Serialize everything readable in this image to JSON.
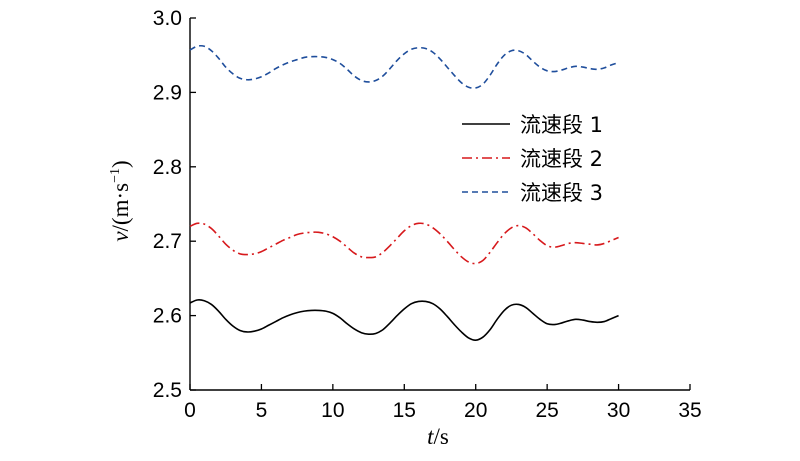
{
  "chart_data": {
    "type": "line",
    "xlabel": {
      "var": "t",
      "unit": "/s"
    },
    "ylabel": {
      "var": "v",
      "unit": "/(m·s",
      "exp": "−1",
      "close": ")"
    },
    "xlim": [
      0,
      35
    ],
    "ylim": [
      2.5,
      3.0
    ],
    "xticks": [
      "0",
      "5",
      "10",
      "15",
      "20",
      "25",
      "30",
      "35"
    ],
    "yticks": [
      "2.5",
      "2.6",
      "2.7",
      "2.8",
      "2.9",
      "3.0"
    ],
    "grid": false,
    "legend_position": "right",
    "series": [
      {
        "name": "流速段 1",
        "color": "#000000",
        "dash": "solid",
        "x": [
          0,
          0.5,
          1,
          1.5,
          2,
          2.5,
          3,
          3.5,
          4,
          4.5,
          5,
          5.5,
          6,
          6.5,
          7,
          7.5,
          8,
          8.5,
          9,
          9.5,
          10,
          10.5,
          11,
          11.5,
          12,
          12.5,
          13,
          13.5,
          14,
          14.5,
          15,
          15.5,
          16,
          16.5,
          17,
          17.5,
          18,
          18.5,
          19,
          19.5,
          20,
          20.5,
          21,
          21.5,
          22,
          22.5,
          23,
          23.5,
          24,
          24.5,
          25,
          25.5,
          26,
          26.5,
          27,
          27.5,
          28,
          28.5,
          29,
          29.5,
          30
        ],
        "values": [
          2.617,
          2.621,
          2.62,
          2.615,
          2.606,
          2.595,
          2.586,
          2.58,
          2.578,
          2.579,
          2.582,
          2.587,
          2.592,
          2.597,
          2.601,
          2.604,
          2.606,
          2.607,
          2.607,
          2.606,
          2.603,
          2.597,
          2.589,
          2.582,
          2.577,
          2.575,
          2.576,
          2.581,
          2.59,
          2.6,
          2.609,
          2.616,
          2.619,
          2.619,
          2.616,
          2.609,
          2.599,
          2.588,
          2.578,
          2.57,
          2.567,
          2.571,
          2.581,
          2.595,
          2.607,
          2.614,
          2.615,
          2.611,
          2.603,
          2.595,
          2.589,
          2.588,
          2.59,
          2.593,
          2.595,
          2.594,
          2.592,
          2.591,
          2.592,
          2.596,
          2.6
        ]
      },
      {
        "name": "流速段 2",
        "color": "#d7191c",
        "dash": "dashdot",
        "x": [
          0,
          0.5,
          1,
          1.5,
          2,
          2.5,
          3,
          3.5,
          4,
          4.5,
          5,
          5.5,
          6,
          6.5,
          7,
          7.5,
          8,
          8.5,
          9,
          9.5,
          10,
          10.5,
          11,
          11.5,
          12,
          12.5,
          13,
          13.5,
          14,
          14.5,
          15,
          15.5,
          16,
          16.5,
          17,
          17.5,
          18,
          18.5,
          19,
          19.5,
          20,
          20.5,
          21,
          21.5,
          22,
          22.5,
          23,
          23.5,
          24,
          24.5,
          25,
          25.5,
          26,
          26.5,
          27,
          27.5,
          28,
          28.5,
          29,
          29.5,
          30
        ],
        "values": [
          2.72,
          2.724,
          2.723,
          2.717,
          2.707,
          2.696,
          2.688,
          2.683,
          2.682,
          2.683,
          2.686,
          2.691,
          2.696,
          2.701,
          2.705,
          2.709,
          2.711,
          2.712,
          2.712,
          2.71,
          2.706,
          2.7,
          2.692,
          2.684,
          2.679,
          2.678,
          2.679,
          2.685,
          2.694,
          2.704,
          2.714,
          2.721,
          2.724,
          2.723,
          2.718,
          2.71,
          2.7,
          2.689,
          2.679,
          2.672,
          2.67,
          2.674,
          2.685,
          2.698,
          2.71,
          2.718,
          2.721,
          2.718,
          2.71,
          2.701,
          2.694,
          2.692,
          2.694,
          2.697,
          2.698,
          2.697,
          2.696,
          2.695,
          2.697,
          2.701,
          2.705
        ]
      },
      {
        "name": "流速段 3",
        "color": "#1f4e9c",
        "dash": "dash",
        "x": [
          0,
          0.5,
          1,
          1.5,
          2,
          2.5,
          3,
          3.5,
          4,
          4.5,
          5,
          5.5,
          6,
          6.5,
          7,
          7.5,
          8,
          8.5,
          9,
          9.5,
          10,
          10.5,
          11,
          11.5,
          12,
          12.5,
          13,
          13.5,
          14,
          14.5,
          15,
          15.5,
          16,
          16.5,
          17,
          17.5,
          18,
          18.5,
          19,
          19.5,
          20,
          20.5,
          21,
          21.5,
          22,
          22.5,
          23,
          23.5,
          24,
          24.5,
          25,
          25.5,
          26,
          26.5,
          27,
          27.5,
          28,
          28.5,
          29,
          29.5,
          30
        ],
        "values": [
          2.957,
          2.962,
          2.962,
          2.956,
          2.946,
          2.934,
          2.925,
          2.919,
          2.917,
          2.918,
          2.921,
          2.926,
          2.932,
          2.937,
          2.941,
          2.944,
          2.947,
          2.948,
          2.948,
          2.947,
          2.944,
          2.939,
          2.931,
          2.922,
          2.916,
          2.914,
          2.916,
          2.922,
          2.932,
          2.943,
          2.952,
          2.958,
          2.96,
          2.959,
          2.954,
          2.945,
          2.934,
          2.923,
          2.913,
          2.907,
          2.906,
          2.911,
          2.923,
          2.938,
          2.95,
          2.956,
          2.956,
          2.951,
          2.942,
          2.934,
          2.929,
          2.928,
          2.93,
          2.933,
          2.935,
          2.934,
          2.932,
          2.931,
          2.933,
          2.937,
          2.94
        ]
      }
    ]
  }
}
